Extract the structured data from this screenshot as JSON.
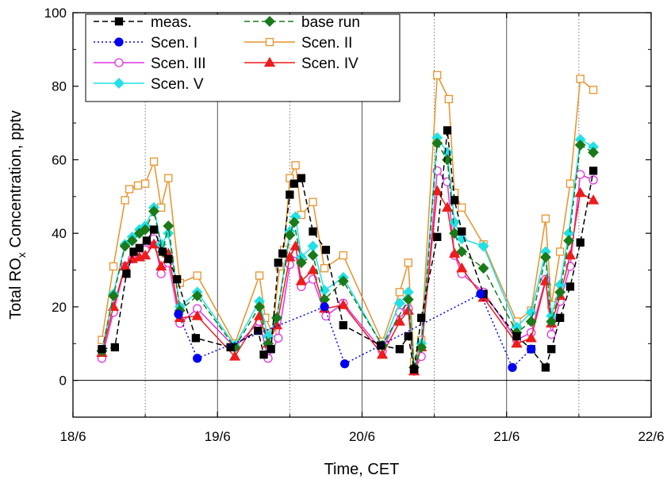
{
  "chart_data": {
    "type": "line",
    "xlabel": "Time, CET",
    "ylabel_main": "Total RO",
    "ylabel_sub": "x",
    "ylabel_rest": " Concentration, pptv",
    "xlim": [
      0,
      4
    ],
    "ylim": [
      -10,
      100
    ],
    "x_ticks": [
      {
        "v": 0,
        "label": "18/6"
      },
      {
        "v": 1,
        "label": "19/6"
      },
      {
        "v": 2,
        "label": "20/6"
      },
      {
        "v": 3,
        "label": "21/6"
      },
      {
        "v": 4,
        "label": "22/6"
      }
    ],
    "y_ticks": [
      {
        "v": 0,
        "label": "0"
      },
      {
        "v": 20,
        "label": "20"
      },
      {
        "v": 40,
        "label": "40"
      },
      {
        "v": 60,
        "label": "60"
      },
      {
        "v": 80,
        "label": "80"
      },
      {
        "v": 100,
        "label": "100"
      }
    ],
    "solid_vlines": [
      1,
      2,
      3
    ],
    "dotted_vlines": [
      0.5,
      1.5,
      2.5,
      3.5
    ],
    "zero_line": true,
    "legend_position": "top-left",
    "series": [
      {
        "name": "meas.",
        "color": "#000000",
        "dash": "7,4",
        "marker": "square",
        "filled": true,
        "points": [
          [
            0.2,
            8.5
          ],
          [
            0.29,
            9
          ],
          [
            0.37,
            29
          ],
          [
            0.42,
            35
          ],
          [
            0.46,
            36
          ],
          [
            0.51,
            38
          ],
          [
            0.56,
            41
          ],
          [
            0.62,
            35
          ],
          [
            0.66,
            33
          ],
          [
            0.72,
            27.5
          ],
          [
            0.85,
            11.5
          ],
          [
            1.09,
            9
          ],
          [
            1.28,
            13.5
          ],
          [
            1.32,
            7
          ],
          [
            1.37,
            8.5
          ],
          [
            1.42,
            32
          ],
          [
            1.45,
            34.5
          ],
          [
            1.5,
            50.5
          ],
          [
            1.53,
            53.5
          ],
          [
            1.58,
            55
          ],
          [
            1.66,
            40.5
          ],
          [
            1.75,
            35.5
          ],
          [
            1.87,
            15
          ],
          [
            2.13,
            9.5
          ],
          [
            2.26,
            8.5
          ],
          [
            2.32,
            12
          ],
          [
            2.36,
            3
          ],
          [
            2.41,
            17
          ],
          [
            2.52,
            39
          ],
          [
            2.59,
            68
          ],
          [
            2.64,
            49
          ],
          [
            2.69,
            40.5
          ],
          [
            2.84,
            23.5
          ],
          [
            3.07,
            12
          ],
          [
            3.17,
            8.5
          ],
          [
            3.27,
            3.5
          ],
          [
            3.31,
            8.5
          ],
          [
            3.37,
            17
          ],
          [
            3.44,
            25.5
          ],
          [
            3.51,
            37.5
          ],
          [
            3.6,
            57
          ]
        ]
      },
      {
        "name": "base run",
        "color": "#1a7a1a",
        "dash": "7,4",
        "marker": "diamond",
        "filled": true,
        "points": [
          [
            0.2,
            8
          ],
          [
            0.28,
            23
          ],
          [
            0.36,
            36.5
          ],
          [
            0.41,
            38
          ],
          [
            0.46,
            40
          ],
          [
            0.5,
            41
          ],
          [
            0.56,
            46
          ],
          [
            0.62,
            35
          ],
          [
            0.66,
            42
          ],
          [
            0.74,
            19
          ],
          [
            0.86,
            23
          ],
          [
            1.12,
            9
          ],
          [
            1.29,
            20
          ],
          [
            1.35,
            10
          ],
          [
            1.41,
            17
          ],
          [
            1.5,
            39.5
          ],
          [
            1.53,
            43
          ],
          [
            1.58,
            32
          ],
          [
            1.66,
            34
          ],
          [
            1.74,
            22
          ],
          [
            1.87,
            27
          ],
          [
            2.14,
            9.5
          ],
          [
            2.32,
            22
          ],
          [
            2.36,
            3.5
          ],
          [
            2.41,
            9
          ],
          [
            2.52,
            64.5
          ],
          [
            2.59,
            60
          ],
          [
            2.64,
            40
          ],
          [
            2.69,
            35
          ],
          [
            2.84,
            30.5
          ],
          [
            3.07,
            13
          ],
          [
            3.17,
            16
          ],
          [
            3.27,
            33.5
          ],
          [
            3.31,
            16
          ],
          [
            3.37,
            24
          ],
          [
            3.43,
            38
          ],
          [
            3.51,
            64
          ],
          [
            3.6,
            62
          ]
        ]
      },
      {
        "name": "Scen. I",
        "color": "#0000ee",
        "dash": "2,3",
        "marker": "circle",
        "filled": true,
        "points": [
          [
            0.73,
            18
          ],
          [
            0.86,
            6
          ],
          [
            1.74,
            20
          ],
          [
            1.88,
            4.5
          ],
          [
            2.82,
            23.5
          ],
          [
            3.04,
            3.5
          ],
          [
            3.17,
            8.5
          ]
        ]
      },
      {
        "name": "Scen. II",
        "color": "#e8922a",
        "dash": "",
        "marker": "square",
        "filled": false,
        "points": [
          [
            0.2,
            11
          ],
          [
            0.28,
            31
          ],
          [
            0.36,
            49
          ],
          [
            0.39,
            52
          ],
          [
            0.45,
            53
          ],
          [
            0.5,
            53.5
          ],
          [
            0.56,
            59.5
          ],
          [
            0.61,
            47
          ],
          [
            0.66,
            55
          ],
          [
            0.74,
            26.5
          ],
          [
            0.86,
            28.5
          ],
          [
            1.12,
            10
          ],
          [
            1.29,
            28.5
          ],
          [
            1.33,
            17
          ],
          [
            1.38,
            13
          ],
          [
            1.43,
            31
          ],
          [
            1.46,
            35.5
          ],
          [
            1.5,
            55
          ],
          [
            1.54,
            58.5
          ],
          [
            1.58,
            45
          ],
          [
            1.66,
            48.5
          ],
          [
            1.74,
            30.5
          ],
          [
            1.87,
            34
          ],
          [
            2.14,
            10.5
          ],
          [
            2.26,
            24
          ],
          [
            2.32,
            32
          ],
          [
            2.36,
            5
          ],
          [
            2.41,
            11
          ],
          [
            2.52,
            83
          ],
          [
            2.6,
            76.5
          ],
          [
            2.64,
            51
          ],
          [
            2.69,
            47
          ],
          [
            2.84,
            37
          ],
          [
            3.07,
            16
          ],
          [
            3.17,
            19
          ],
          [
            3.27,
            44
          ],
          [
            3.31,
            20.5
          ],
          [
            3.37,
            35
          ],
          [
            3.44,
            53.5
          ],
          [
            3.51,
            82
          ],
          [
            3.6,
            79
          ]
        ]
      },
      {
        "name": "Scen. III",
        "color": "#e033e0",
        "dash": "",
        "marker": "circle",
        "filled": false,
        "points": [
          [
            0.2,
            6
          ],
          [
            0.28,
            18.5
          ],
          [
            0.36,
            31
          ],
          [
            0.41,
            33
          ],
          [
            0.46,
            34
          ],
          [
            0.5,
            35.5
          ],
          [
            0.56,
            38.5
          ],
          [
            0.61,
            29
          ],
          [
            0.66,
            32
          ],
          [
            0.74,
            15.5
          ],
          [
            0.86,
            19.5
          ],
          [
            1.12,
            9
          ],
          [
            1.29,
            16
          ],
          [
            1.35,
            6
          ],
          [
            1.42,
            11.5
          ],
          [
            1.5,
            31.5
          ],
          [
            1.54,
            34.5
          ],
          [
            1.58,
            25.5
          ],
          [
            1.66,
            27.5
          ],
          [
            1.75,
            17.5
          ],
          [
            1.87,
            21
          ],
          [
            2.14,
            8
          ],
          [
            2.26,
            18.5
          ],
          [
            2.32,
            19.5
          ],
          [
            2.36,
            2.5
          ],
          [
            2.41,
            6.5
          ],
          [
            2.52,
            57
          ],
          [
            2.59,
            54
          ],
          [
            2.64,
            34
          ],
          [
            2.69,
            29
          ],
          [
            2.84,
            24
          ],
          [
            3.07,
            11
          ],
          [
            3.17,
            13
          ],
          [
            3.27,
            27.5
          ],
          [
            3.31,
            12.5
          ],
          [
            3.37,
            21.5
          ],
          [
            3.44,
            31
          ],
          [
            3.51,
            56
          ],
          [
            3.6,
            54.5
          ]
        ]
      },
      {
        "name": "Scen. IV",
        "color": "#ee1c1c",
        "dash": "",
        "marker": "triangle",
        "filled": true,
        "points": [
          [
            0.2,
            7.5
          ],
          [
            0.28,
            20
          ],
          [
            0.36,
            31
          ],
          [
            0.41,
            33
          ],
          [
            0.46,
            33.5
          ],
          [
            0.5,
            34
          ],
          [
            0.56,
            37
          ],
          [
            0.61,
            31
          ],
          [
            0.66,
            34.5
          ],
          [
            0.74,
            17
          ],
          [
            0.86,
            17.5
          ],
          [
            1.12,
            6.5
          ],
          [
            1.29,
            17.5
          ],
          [
            1.35,
            10
          ],
          [
            1.41,
            15
          ],
          [
            1.5,
            33.5
          ],
          [
            1.54,
            36.5
          ],
          [
            1.58,
            27
          ],
          [
            1.66,
            30
          ],
          [
            1.74,
            19.5
          ],
          [
            1.87,
            20.5
          ],
          [
            2.14,
            7
          ],
          [
            2.26,
            16
          ],
          [
            2.32,
            19
          ],
          [
            2.36,
            2.5
          ],
          [
            2.41,
            9
          ],
          [
            2.52,
            51.5
          ],
          [
            2.59,
            47
          ],
          [
            2.64,
            34.5
          ],
          [
            2.69,
            30.5
          ],
          [
            2.84,
            22.5
          ],
          [
            3.07,
            10
          ],
          [
            3.17,
            11.5
          ],
          [
            3.27,
            27
          ],
          [
            3.31,
            15.5
          ],
          [
            3.37,
            23
          ],
          [
            3.44,
            34
          ],
          [
            3.51,
            51
          ],
          [
            3.6,
            49
          ]
        ]
      },
      {
        "name": "Scen. V",
        "color": "#22e0e8",
        "dash": "",
        "marker": "diamond",
        "filled": true,
        "points": [
          [
            0.2,
            8
          ],
          [
            0.28,
            23.5
          ],
          [
            0.36,
            37
          ],
          [
            0.41,
            39
          ],
          [
            0.46,
            41
          ],
          [
            0.5,
            42
          ],
          [
            0.56,
            47
          ],
          [
            0.61,
            37
          ],
          [
            0.66,
            40
          ],
          [
            0.74,
            20
          ],
          [
            0.86,
            24
          ],
          [
            1.12,
            9.5
          ],
          [
            1.29,
            21.5
          ],
          [
            1.35,
            12
          ],
          [
            1.41,
            17
          ],
          [
            1.5,
            40.5
          ],
          [
            1.54,
            44.5
          ],
          [
            1.58,
            33.5
          ],
          [
            1.66,
            36.5
          ],
          [
            1.74,
            24.5
          ],
          [
            1.87,
            28
          ],
          [
            2.14,
            9.5
          ],
          [
            2.26,
            21
          ],
          [
            2.32,
            24
          ],
          [
            2.36,
            3.5
          ],
          [
            2.41,
            10
          ],
          [
            2.52,
            66
          ],
          [
            2.59,
            62
          ],
          [
            2.64,
            43
          ],
          [
            2.69,
            38.5
          ],
          [
            2.84,
            36.5
          ],
          [
            3.07,
            14.5
          ],
          [
            3.17,
            18.5
          ],
          [
            3.27,
            35
          ],
          [
            3.31,
            17.5
          ],
          [
            3.37,
            26
          ],
          [
            3.43,
            40
          ],
          [
            3.51,
            65.5
          ],
          [
            3.6,
            63.5
          ]
        ]
      }
    ]
  }
}
